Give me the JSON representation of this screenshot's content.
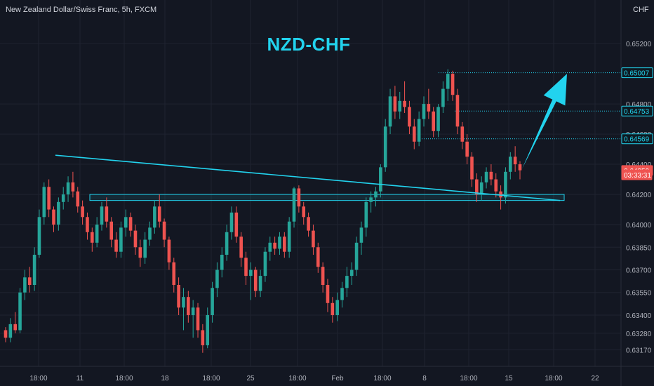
{
  "header": {
    "symbol_desc": "New Zealand Dollar/Swiss Franc, 5h, FXCM",
    "currency": "CHF"
  },
  "chart_data": {
    "type": "candlestick",
    "title": "NZD-CHF",
    "yaxis": {
      "ticks": [
        "0.65200",
        "0.64800",
        "0.64600",
        "0.64400",
        "0.64200",
        "0.64000",
        "0.63850",
        "0.63700",
        "0.63550",
        "0.63400",
        "0.63280",
        "0.63170"
      ],
      "tick_values": [
        0.652,
        0.648,
        0.646,
        0.644,
        0.642,
        0.64,
        0.6385,
        0.637,
        0.6355,
        0.634,
        0.6328,
        0.6317
      ],
      "ylim": [
        0.6313,
        0.6541
      ]
    },
    "xaxis": {
      "ticks": [
        "18:00",
        "11",
        "18:00",
        "18",
        "18:00",
        "25",
        "18:00",
        "Feb",
        "18:00",
        "8",
        "18:00",
        "15",
        "18:00",
        "22"
      ]
    },
    "price_labels": [
      {
        "value": 0.65007,
        "text": "0.65007",
        "style": "outline"
      },
      {
        "value": 0.64753,
        "text": "0.64753",
        "style": "outline"
      },
      {
        "value": 0.64569,
        "text": "0.64569",
        "style": "outline"
      },
      {
        "value": 0.64359,
        "text": "0.64359",
        "style": "current"
      },
      {
        "value": 0.6433,
        "text": "03:33:31",
        "style": "timer"
      }
    ],
    "level_lines": [
      0.65007,
      0.64753,
      0.64569
    ],
    "support_zone": {
      "low": 0.6416,
      "high": 0.642
    },
    "trendline": {
      "from": {
        "x": "10 Jan 12:00",
        "y": 0.6446
      },
      "to": {
        "x": "17 Feb 03:00",
        "y": 0.6416
      }
    },
    "arrow": {
      "from": {
        "x": "15 Feb 18:00",
        "y": 0.6437
      },
      "to": {
        "x": "17 Feb 06:00",
        "y": 0.65
      }
    },
    "colors": {
      "up": "#26a69a",
      "down": "#ef5350",
      "accent": "#22d3ee",
      "background": "#131722",
      "grid": "#1f2330",
      "text": "#b2b5be"
    },
    "candles": [
      [
        0.633,
        0.6332,
        0.6322,
        0.6325
      ],
      [
        0.6325,
        0.6338,
        0.6322,
        0.6334
      ],
      [
        0.6334,
        0.6342,
        0.6328,
        0.633
      ],
      [
        0.633,
        0.6358,
        0.6328,
        0.6355
      ],
      [
        0.6355,
        0.637,
        0.635,
        0.6365
      ],
      [
        0.6365,
        0.6372,
        0.6355,
        0.636
      ],
      [
        0.636,
        0.6385,
        0.6356,
        0.638
      ],
      [
        0.638,
        0.641,
        0.6378,
        0.6405
      ],
      [
        0.6405,
        0.6428,
        0.64,
        0.6425
      ],
      [
        0.6425,
        0.643,
        0.6405,
        0.641
      ],
      [
        0.641,
        0.6412,
        0.6395,
        0.64
      ],
      [
        0.64,
        0.6418,
        0.6396,
        0.6415
      ],
      [
        0.6415,
        0.6425,
        0.641,
        0.642
      ],
      [
        0.642,
        0.6432,
        0.6415,
        0.6428
      ],
      [
        0.6428,
        0.6435,
        0.6418,
        0.6422
      ],
      [
        0.6422,
        0.6425,
        0.6408,
        0.6412
      ],
      [
        0.6412,
        0.6416,
        0.64,
        0.6405
      ],
      [
        0.6405,
        0.6408,
        0.639,
        0.6395
      ],
      [
        0.6395,
        0.6398,
        0.6382,
        0.6388
      ],
      [
        0.6388,
        0.6405,
        0.6385,
        0.64
      ],
      [
        0.64,
        0.6415,
        0.6396,
        0.6412
      ],
      [
        0.6412,
        0.6418,
        0.6398,
        0.6402
      ],
      [
        0.6402,
        0.6405,
        0.6385,
        0.639
      ],
      [
        0.639,
        0.6395,
        0.6378,
        0.6382
      ],
      [
        0.6382,
        0.6402,
        0.6378,
        0.6398
      ],
      [
        0.6398,
        0.641,
        0.6392,
        0.6405
      ],
      [
        0.6405,
        0.6408,
        0.6392,
        0.6396
      ],
      [
        0.6396,
        0.64,
        0.638,
        0.6385
      ],
      [
        0.6385,
        0.639,
        0.6372,
        0.6378
      ],
      [
        0.6378,
        0.6395,
        0.6374,
        0.639
      ],
      [
        0.639,
        0.6402,
        0.6386,
        0.6398
      ],
      [
        0.6398,
        0.6416,
        0.6394,
        0.6412
      ],
      [
        0.6412,
        0.642,
        0.6398,
        0.6402
      ],
      [
        0.6402,
        0.6404,
        0.6385,
        0.639
      ],
      [
        0.639,
        0.6392,
        0.637,
        0.6375
      ],
      [
        0.6375,
        0.6378,
        0.6355,
        0.636
      ],
      [
        0.636,
        0.6365,
        0.634,
        0.6345
      ],
      [
        0.6345,
        0.6358,
        0.633,
        0.6352
      ],
      [
        0.6352,
        0.6356,
        0.6335,
        0.634
      ],
      [
        0.634,
        0.635,
        0.6325,
        0.6345
      ],
      [
        0.6345,
        0.6348,
        0.6325,
        0.633
      ],
      [
        0.633,
        0.6334,
        0.6315,
        0.632
      ],
      [
        0.632,
        0.6345,
        0.6318,
        0.634
      ],
      [
        0.634,
        0.6362,
        0.6335,
        0.6358
      ],
      [
        0.6358,
        0.6375,
        0.6352,
        0.637
      ],
      [
        0.637,
        0.6385,
        0.6365,
        0.638
      ],
      [
        0.638,
        0.64,
        0.6376,
        0.6395
      ],
      [
        0.6395,
        0.6412,
        0.639,
        0.6408
      ],
      [
        0.6408,
        0.6412,
        0.6388,
        0.6392
      ],
      [
        0.6392,
        0.6395,
        0.6372,
        0.6378
      ],
      [
        0.6378,
        0.6382,
        0.636,
        0.6366
      ],
      [
        0.6366,
        0.6375,
        0.635,
        0.637
      ],
      [
        0.637,
        0.6372,
        0.6352,
        0.6356
      ],
      [
        0.6356,
        0.637,
        0.6352,
        0.6366
      ],
      [
        0.6366,
        0.6385,
        0.6362,
        0.6382
      ],
      [
        0.6382,
        0.6392,
        0.6376,
        0.6388
      ],
      [
        0.6388,
        0.6392,
        0.638,
        0.6384
      ],
      [
        0.6384,
        0.6395,
        0.638,
        0.6392
      ],
      [
        0.6392,
        0.6395,
        0.6378,
        0.6382
      ],
      [
        0.6382,
        0.6405,
        0.6378,
        0.6402
      ],
      [
        0.6402,
        0.6425,
        0.6398,
        0.6424
      ],
      [
        0.6424,
        0.6426,
        0.6408,
        0.6412
      ],
      [
        0.6412,
        0.6415,
        0.64,
        0.6405
      ],
      [
        0.6405,
        0.6408,
        0.6392,
        0.6396
      ],
      [
        0.6396,
        0.64,
        0.638,
        0.6385
      ],
      [
        0.6385,
        0.6388,
        0.6368,
        0.6372
      ],
      [
        0.6372,
        0.6375,
        0.6355,
        0.636
      ],
      [
        0.636,
        0.6364,
        0.6342,
        0.6348
      ],
      [
        0.6348,
        0.6352,
        0.6335,
        0.634
      ],
      [
        0.634,
        0.6355,
        0.6336,
        0.635
      ],
      [
        0.635,
        0.6362,
        0.6345,
        0.6358
      ],
      [
        0.6358,
        0.6372,
        0.6352,
        0.6366
      ],
      [
        0.6366,
        0.6375,
        0.636,
        0.637
      ],
      [
        0.637,
        0.6392,
        0.6366,
        0.6388
      ],
      [
        0.6388,
        0.6402,
        0.638,
        0.6398
      ],
      [
        0.6398,
        0.6418,
        0.6392,
        0.6415
      ],
      [
        0.6415,
        0.6422,
        0.6408,
        0.6418
      ],
      [
        0.6418,
        0.6425,
        0.6412,
        0.6422
      ],
      [
        0.6422,
        0.644,
        0.6418,
        0.6438
      ],
      [
        0.6438,
        0.647,
        0.6435,
        0.6465
      ],
      [
        0.6465,
        0.649,
        0.646,
        0.6485
      ],
      [
        0.6485,
        0.6492,
        0.647,
        0.6475
      ],
      [
        0.6475,
        0.6488,
        0.647,
        0.6482
      ],
      [
        0.6482,
        0.6495,
        0.6474,
        0.6478
      ],
      [
        0.6478,
        0.6482,
        0.646,
        0.6465
      ],
      [
        0.6465,
        0.647,
        0.645,
        0.6455
      ],
      [
        0.6455,
        0.6475,
        0.6452,
        0.647
      ],
      [
        0.647,
        0.6485,
        0.6465,
        0.648
      ],
      [
        0.648,
        0.649,
        0.647,
        0.6475
      ],
      [
        0.6475,
        0.6478,
        0.6458,
        0.6462
      ],
      [
        0.6462,
        0.648,
        0.6458,
        0.6478
      ],
      [
        0.6478,
        0.6495,
        0.6474,
        0.649
      ],
      [
        0.649,
        0.6503,
        0.6482,
        0.65
      ],
      [
        0.65,
        0.6502,
        0.6482,
        0.6486
      ],
      [
        0.6486,
        0.649,
        0.646,
        0.6465
      ],
      [
        0.6465,
        0.6468,
        0.645,
        0.6455
      ],
      [
        0.6455,
        0.646,
        0.644,
        0.6445
      ],
      [
        0.6445,
        0.6448,
        0.6425,
        0.643
      ],
      [
        0.643,
        0.6434,
        0.6415,
        0.642
      ],
      [
        0.642,
        0.6432,
        0.6416,
        0.6428
      ],
      [
        0.6428,
        0.6438,
        0.6424,
        0.6435
      ],
      [
        0.6435,
        0.644,
        0.6426,
        0.643
      ],
      [
        0.643,
        0.6434,
        0.6418,
        0.6422
      ],
      [
        0.6422,
        0.6426,
        0.641,
        0.6418
      ],
      [
        0.6418,
        0.6438,
        0.6414,
        0.6435
      ],
      [
        0.6435,
        0.6448,
        0.643,
        0.6445
      ],
      [
        0.6445,
        0.6452,
        0.6435,
        0.644
      ],
      [
        0.644,
        0.6442,
        0.643,
        0.6436
      ]
    ]
  }
}
